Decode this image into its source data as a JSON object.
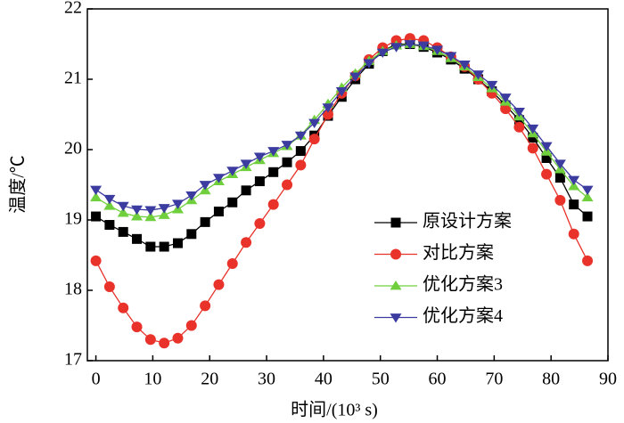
{
  "chart_data": {
    "type": "line",
    "xlabel": "时间/(10³ s)",
    "ylabel": "温度/℃",
    "x": [
      0,
      2.4,
      4.8,
      7.2,
      9.6,
      12,
      14.4,
      16.8,
      19.2,
      21.6,
      24,
      26.4,
      28.8,
      31.2,
      33.6,
      36,
      38.4,
      40.8,
      43.2,
      45.6,
      48,
      50.4,
      52.8,
      55.2,
      57.6,
      60,
      62.4,
      64.8,
      67.2,
      69.6,
      72,
      74.4,
      76.8,
      79.2,
      81.6,
      84,
      86.4
    ],
    "series": [
      {
        "name": "原设计方案",
        "color": "#000000",
        "marker": "square",
        "values": [
          19.05,
          18.93,
          18.83,
          18.73,
          18.62,
          18.62,
          18.67,
          18.8,
          18.97,
          19.12,
          19.25,
          19.42,
          19.55,
          19.68,
          19.82,
          19.98,
          20.2,
          20.48,
          20.75,
          21.0,
          21.22,
          21.4,
          21.5,
          21.5,
          21.46,
          21.38,
          21.28,
          21.15,
          21.0,
          20.83,
          20.63,
          20.42,
          20.17,
          19.88,
          19.6,
          19.22,
          19.05
        ]
      },
      {
        "name": "对比方案",
        "color": "#e8322a",
        "marker": "circle",
        "values": [
          18.42,
          18.05,
          17.75,
          17.48,
          17.3,
          17.25,
          17.32,
          17.5,
          17.78,
          18.08,
          18.38,
          18.68,
          18.95,
          19.22,
          19.5,
          19.78,
          20.15,
          20.5,
          20.8,
          21.05,
          21.28,
          21.45,
          21.55,
          21.58,
          21.55,
          21.45,
          21.32,
          21.18,
          21.0,
          20.8,
          20.58,
          20.32,
          20.02,
          19.65,
          19.28,
          18.8,
          18.42
        ]
      },
      {
        "name": "优化方案3",
        "color": "#6fcf3c",
        "marker": "triangle-up",
        "values": [
          19.32,
          19.2,
          19.1,
          19.05,
          19.04,
          19.07,
          19.15,
          19.28,
          19.42,
          19.55,
          19.65,
          19.75,
          19.85,
          19.95,
          20.05,
          20.2,
          20.42,
          20.65,
          20.88,
          21.08,
          21.26,
          21.4,
          21.48,
          21.5,
          21.47,
          21.4,
          21.3,
          21.18,
          21.03,
          20.87,
          20.68,
          20.47,
          20.23,
          19.97,
          19.72,
          19.48,
          19.32
        ]
      },
      {
        "name": "优化方案4",
        "color": "#3b3ba0",
        "marker": "triangle-down",
        "values": [
          19.43,
          19.3,
          19.2,
          19.15,
          19.14,
          19.17,
          19.23,
          19.35,
          19.5,
          19.6,
          19.7,
          19.8,
          19.9,
          19.98,
          20.07,
          20.2,
          20.38,
          20.6,
          20.83,
          21.04,
          21.23,
          21.38,
          21.46,
          21.5,
          21.48,
          21.42,
          21.33,
          21.21,
          21.07,
          20.92,
          20.74,
          20.54,
          20.3,
          20.05,
          19.8,
          19.57,
          19.43
        ]
      }
    ],
    "xlim": [
      -1.5,
      90
    ],
    "xticks": [
      0,
      10,
      20,
      30,
      40,
      50,
      60,
      70,
      80,
      90
    ],
    "ylim": [
      17,
      22
    ],
    "yticks": [
      17,
      18,
      19,
      20,
      21,
      22
    ],
    "grid": false,
    "legend": "lower right"
  }
}
